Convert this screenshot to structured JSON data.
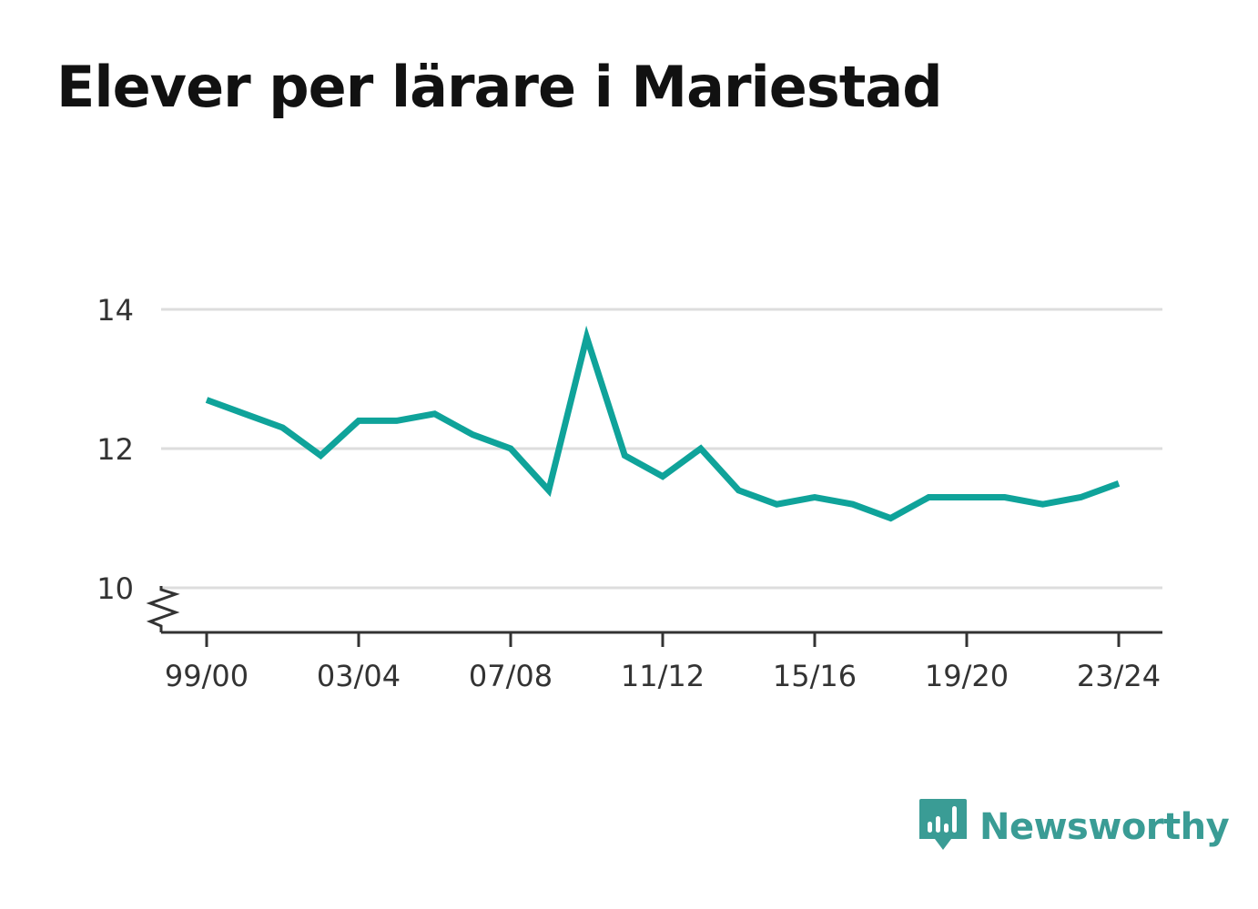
{
  "title": "Elever per lärare i Mariestad",
  "brand": {
    "name": "Newsworthy",
    "icon": "bar-chart-speech-bubble-icon",
    "color": "#3a9c95"
  },
  "chart_data": {
    "type": "line",
    "title": "Elever per lärare i Mariestad",
    "xlabel": "",
    "ylabel": "",
    "x": [
      "99/00",
      "00/01",
      "01/02",
      "02/03",
      "03/04",
      "04/05",
      "05/06",
      "06/07",
      "07/08",
      "08/09",
      "09/10",
      "10/11",
      "11/12",
      "12/13",
      "13/14",
      "14/15",
      "15/16",
      "16/17",
      "17/18",
      "18/19",
      "19/20",
      "20/21",
      "21/22",
      "22/23",
      "23/24"
    ],
    "x_tick_labels": [
      "99/00",
      "03/04",
      "07/08",
      "11/12",
      "15/16",
      "19/20",
      "23/24"
    ],
    "series": [
      {
        "color": "#0fa39a",
        "values": [
          12.7,
          12.5,
          12.3,
          11.9,
          12.4,
          12.4,
          12.5,
          12.2,
          12.0,
          11.4,
          13.6,
          11.9,
          11.6,
          12.0,
          11.4,
          11.2,
          11.3,
          11.2,
          11.0,
          11.3,
          11.3,
          11.3,
          11.2,
          11.3,
          11.5
        ]
      }
    ],
    "y_ticks": [
      10,
      12,
      14
    ],
    "ylim": [
      9.4,
      14.5
    ],
    "axis_break": true,
    "grid": true,
    "legend": "none"
  }
}
